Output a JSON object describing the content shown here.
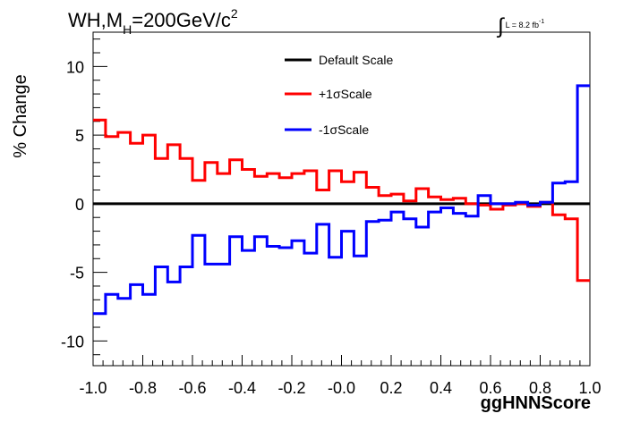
{
  "title": {
    "prefix": "WH,M",
    "subscript": "H",
    "main": "=200GeV/c",
    "superscript": "2"
  },
  "luminosity": {
    "symbol": "∫",
    "text": "L = 8.2 fb",
    "superscript": "-1"
  },
  "colors": {
    "default": "#000000",
    "plus": "#ff0000",
    "minus": "#0000ff"
  },
  "chart_data": {
    "type": "line",
    "xlabel": "ggHNNScore",
    "ylabel": "% Change",
    "xlim": [
      -1.0,
      1.0
    ],
    "ylim": [
      -11.8,
      12.5
    ],
    "x_ticks": [
      "-1.0",
      "-0.8",
      "-0.6",
      "-0.4",
      "-0.2",
      "-0.0",
      "0.2",
      "0.4",
      "0.6",
      "0.8",
      "1.0"
    ],
    "y_ticks": [
      "10",
      "5",
      "0",
      "-5",
      "-10"
    ],
    "bin_edges": [
      -1.0,
      -0.95,
      -0.9,
      -0.85,
      -0.8,
      -0.75,
      -0.7,
      -0.65,
      -0.6,
      -0.55,
      -0.5,
      -0.45,
      -0.4,
      -0.35,
      -0.3,
      -0.25,
      -0.2,
      -0.15,
      -0.1,
      -0.05,
      0.0,
      0.05,
      0.1,
      0.15,
      0.2,
      0.25,
      0.3,
      0.35,
      0.4,
      0.45,
      0.5,
      0.55,
      0.6,
      0.65,
      0.7,
      0.75,
      0.8,
      0.85,
      0.9,
      0.95,
      1.0
    ],
    "series": [
      {
        "name": "Default Scale",
        "color": "#000000",
        "values": [
          0,
          0,
          0,
          0,
          0,
          0,
          0,
          0,
          0,
          0,
          0,
          0,
          0,
          0,
          0,
          0,
          0,
          0,
          0,
          0,
          0,
          0,
          0,
          0,
          0,
          0,
          0,
          0,
          0,
          0,
          0,
          0,
          0,
          0,
          0,
          0,
          0,
          0,
          0,
          0
        ]
      },
      {
        "name": "+1σScale",
        "color": "#ff0000",
        "values": [
          6.1,
          4.9,
          5.2,
          4.4,
          5.0,
          3.3,
          4.3,
          3.3,
          1.7,
          3.0,
          2.2,
          3.2,
          2.5,
          2.0,
          2.2,
          1.9,
          2.2,
          2.4,
          1.0,
          2.4,
          1.6,
          2.3,
          1.2,
          0.6,
          0.7,
          0.2,
          1.1,
          0.5,
          0.3,
          0.4,
          0.0,
          -0.1,
          -0.4,
          -0.1,
          0.0,
          -0.2,
          0.1,
          -0.8,
          -1.1,
          -5.6
        ]
      },
      {
        "name": "-1σScale",
        "color": "#0000ff",
        "values": [
          -8.0,
          -6.6,
          -6.9,
          -5.9,
          -6.6,
          -4.6,
          -5.7,
          -4.6,
          -2.3,
          -4.4,
          -4.4,
          -2.4,
          -3.4,
          -2.4,
          -3.1,
          -3.2,
          -2.7,
          -3.6,
          -1.5,
          -3.9,
          -2.0,
          -3.8,
          -1.3,
          -1.2,
          -0.6,
          -1.1,
          -1.7,
          -0.6,
          -0.3,
          -0.7,
          -0.9,
          0.6,
          0.0,
          0.0,
          0.1,
          -0.1,
          0.1,
          1.5,
          1.6,
          8.6
        ]
      }
    ],
    "legend": [
      "Default Scale",
      "+1σScale",
      "-1σScale"
    ],
    "legend_placement": "top-center",
    "grid": false
  }
}
